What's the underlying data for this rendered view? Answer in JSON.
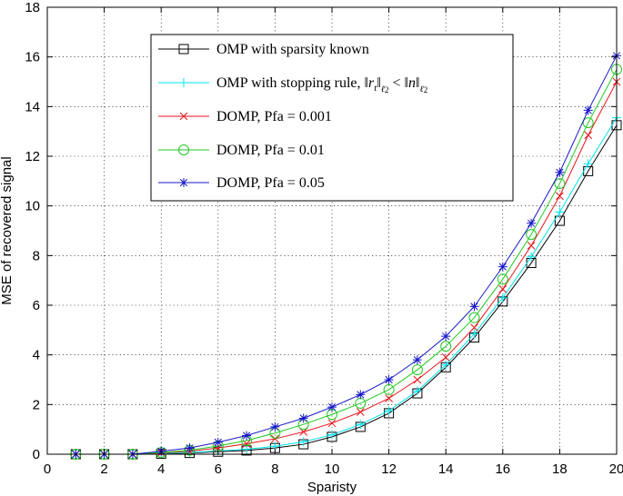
{
  "chart_data": {
    "type": "line",
    "title": "",
    "xlabel": "Sparisty",
    "ylabel": "MSE of recovered signal",
    "xlim": [
      0,
      20
    ],
    "ylim": [
      0,
      18
    ],
    "xticks": [
      0,
      2,
      4,
      6,
      8,
      10,
      12,
      14,
      16,
      18,
      20
    ],
    "yticks": [
      0,
      2,
      4,
      6,
      8,
      10,
      12,
      14,
      16,
      18
    ],
    "grid": true,
    "legend_position": "top-center",
    "x": [
      1,
      2,
      3,
      4,
      5,
      6,
      7,
      8,
      9,
      10,
      11,
      12,
      13,
      14,
      15,
      16,
      17,
      18,
      19,
      20
    ],
    "series": [
      {
        "name": "OMP with sparsity known",
        "color": "#000000",
        "marker": "square",
        "values": [
          0.0,
          0.0,
          0.0,
          0.02,
          0.05,
          0.1,
          0.15,
          0.25,
          0.4,
          0.7,
          1.1,
          1.65,
          2.45,
          3.5,
          4.7,
          6.15,
          7.7,
          9.4,
          11.4,
          13.25
        ]
      },
      {
        "name": "OMP with stopping rule, ",
        "color": "#00e5ee",
        "marker": "plus",
        "values": [
          0.0,
          0.0,
          0.0,
          0.03,
          0.07,
          0.13,
          0.2,
          0.32,
          0.5,
          0.78,
          1.2,
          1.75,
          2.55,
          3.6,
          4.85,
          6.3,
          7.95,
          9.75,
          11.7,
          13.55
        ]
      },
      {
        "name": "DOMP, Pfa = 0.001",
        "color": "#e8151b",
        "marker": "x",
        "values": [
          0.0,
          0.0,
          0.0,
          0.05,
          0.12,
          0.25,
          0.42,
          0.62,
          0.9,
          1.25,
          1.7,
          2.25,
          3.0,
          3.9,
          5.1,
          6.65,
          8.4,
          10.4,
          12.85,
          15.0
        ]
      },
      {
        "name": "DOMP, Pfa = 0.01",
        "color": "#22c922",
        "marker": "circle",
        "values": [
          0.0,
          0.0,
          0.0,
          0.07,
          0.16,
          0.33,
          0.55,
          0.85,
          1.2,
          1.6,
          2.05,
          2.6,
          3.4,
          4.35,
          5.5,
          7.05,
          8.85,
          10.9,
          13.35,
          15.5
        ]
      },
      {
        "name": "DOMP, Pfa = 0.05",
        "color": "#1515c8",
        "marker": "star",
        "values": [
          0.0,
          0.0,
          0.0,
          0.12,
          0.25,
          0.48,
          0.75,
          1.1,
          1.45,
          1.9,
          2.4,
          3.0,
          3.8,
          4.75,
          5.95,
          7.55,
          9.3,
          11.35,
          13.85,
          16.05
        ]
      }
    ],
    "legend_math": {
      "open": "‖",
      "r": "r",
      "sub_t": "t",
      "close": "‖",
      "norm_sub": "ℓ",
      "norm_sub2": "2",
      "lt": " < ",
      "n": "n"
    }
  }
}
